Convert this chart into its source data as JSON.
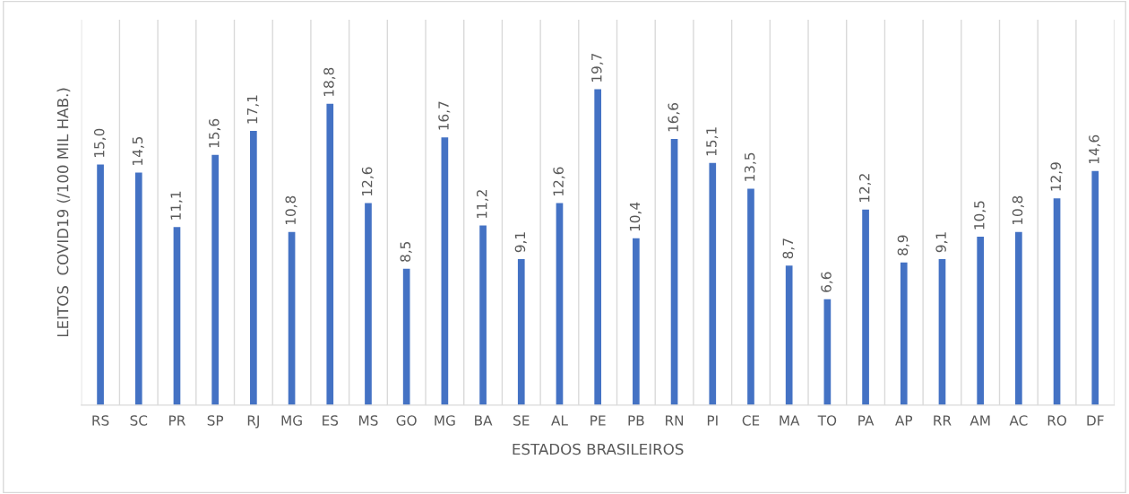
{
  "chart_data": {
    "type": "bar",
    "xlabel": "ESTADOS BRASILEIROS",
    "ylabel": "LEITOS  COVID19 (/100 MIL HAB.)",
    "categories": [
      "RS",
      "SC",
      "PR",
      "SP",
      "RJ",
      "MG",
      "ES",
      "MS",
      "GO",
      "MG",
      "BA",
      "SE",
      "AL",
      "PE",
      "PB",
      "RN",
      "PI",
      "CE",
      "MA",
      "TO",
      "PA",
      "AP",
      "RR",
      "AM",
      "AC",
      "RO",
      "DF"
    ],
    "values": [
      15.0,
      14.5,
      11.1,
      15.6,
      17.1,
      10.8,
      18.8,
      12.6,
      8.5,
      16.7,
      11.2,
      9.1,
      12.6,
      19.7,
      10.4,
      16.6,
      15.1,
      13.5,
      8.7,
      6.6,
      12.2,
      8.9,
      9.1,
      10.5,
      10.8,
      12.9,
      14.6
    ],
    "value_labels": [
      "15,0",
      "14,5",
      "11,1",
      "15,6",
      "17,1",
      "10,8",
      "18,8",
      "12,6",
      "8,5",
      "16,7",
      "11,2",
      "9,1",
      "12,6",
      "19,7",
      "10,4",
      "16,6",
      "15,1",
      "13,5",
      "8,7",
      "6,6",
      "12,2",
      "8,9",
      "9,1",
      "10,5",
      "10,8",
      "12,9",
      "14,6"
    ],
    "color": "#4472c4",
    "grid": "x",
    "tick_labels": "x",
    "legend": false
  }
}
